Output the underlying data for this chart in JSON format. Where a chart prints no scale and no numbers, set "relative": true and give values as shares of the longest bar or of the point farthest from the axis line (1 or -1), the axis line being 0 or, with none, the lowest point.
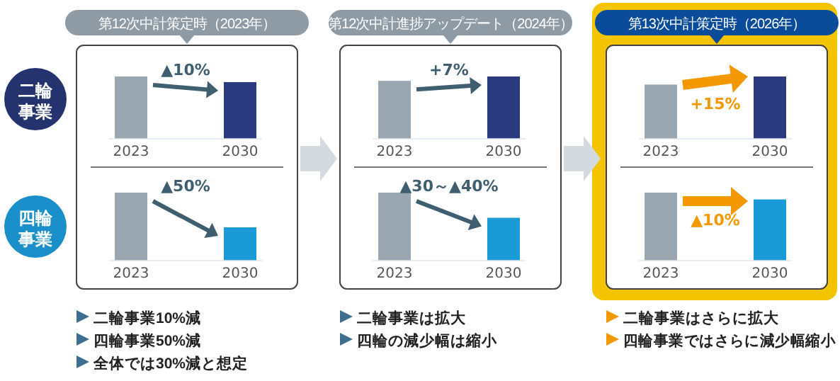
{
  "chart_data": [
    {
      "type": "other",
      "annotations": [
        "二輪事業",
        "四輪事業"
      ]
    },
    {
      "type": "bar",
      "title": "第12次中計策定時（2023年）",
      "categories": [
        "2023",
        "2030"
      ],
      "values": [
        1,
        0.91
      ],
      "colors": [
        "#9aa7b1",
        "#2b3a7e"
      ],
      "relative": true,
      "annotations": [
        "▲10%"
      ]
    },
    {
      "type": "bar",
      "categories": [
        "2023",
        "2030"
      ],
      "values": [
        1,
        0.49
      ],
      "colors": [
        "#9aa7b1",
        "#1a9ad6"
      ],
      "relative": true,
      "annotations": [
        "▲50%",
        "二輪事業10%減",
        "四輪事業50%減",
        "全体では30%減と想定"
      ]
    },
    {
      "type": "bar",
      "title": "第12次中計進捗アップデート（2024年）",
      "categories": [
        "2023",
        "2030"
      ],
      "values": [
        0.93,
        1
      ],
      "colors": [
        "#9aa7b1",
        "#2b3a7e"
      ],
      "relative": true,
      "annotations": [
        "+7%"
      ]
    },
    {
      "type": "bar",
      "categories": [
        "2023",
        "2030"
      ],
      "values": [
        1,
        0.63
      ],
      "colors": [
        "#9aa7b1",
        "#1a9ad6"
      ],
      "relative": true,
      "annotations": [
        "▲30～▲40%",
        "二輪事業は拡大",
        "四輪の減少幅は縮小"
      ]
    },
    {
      "type": "bar",
      "title": "第13次中計策定時（2026年）",
      "categories": [
        "2023",
        "2030"
      ],
      "values": [
        0.87,
        1
      ],
      "colors": [
        "#9aa7b1",
        "#2b3a7e"
      ],
      "relative": true,
      "annotations": [
        "+15%"
      ]
    },
    {
      "type": "bar",
      "categories": [
        "2023",
        "2030"
      ],
      "values": [
        1,
        0.9
      ],
      "colors": [
        "#9aa7b1",
        "#1a9ad6"
      ],
      "relative": true,
      "annotations": [
        "▲10%",
        "二輪事業はさらに拡大",
        "四輪事業ではさらに減少幅縮小"
      ]
    }
  ]
}
